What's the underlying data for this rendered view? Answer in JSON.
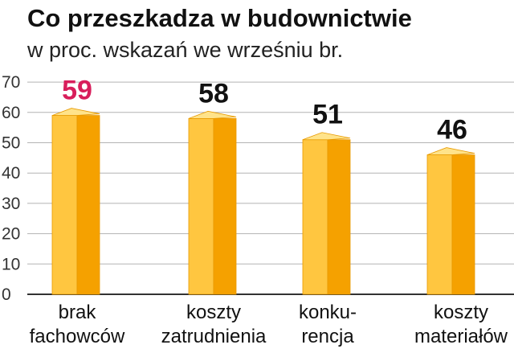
{
  "chart_data": {
    "type": "bar",
    "title": "Co przeszkadza w budownictwie",
    "subtitle": "w proc. wskazań we wrześniu br.",
    "categories": [
      [
        "brak",
        "fachowców"
      ],
      [
        "koszty",
        "zatrudnienia"
      ],
      [
        "konku-",
        "rencja"
      ],
      [
        "koszty",
        "materiałów"
      ]
    ],
    "values": [
      59,
      58,
      51,
      46
    ],
    "value_labels": [
      "59",
      "58",
      "51",
      "46"
    ],
    "ylim": [
      0,
      70
    ],
    "yticks": [
      "0",
      "10",
      "20",
      "30",
      "40",
      "50",
      "60",
      "70"
    ],
    "grid": true,
    "colors": {
      "bar_front": "#FFC640",
      "bar_side": "#F5A100",
      "bar_top": "#FFE38A",
      "highlight_label": "#D81E5B",
      "label": "#111111",
      "grid": "#B3B3B3"
    },
    "highlight_index": 0
  }
}
